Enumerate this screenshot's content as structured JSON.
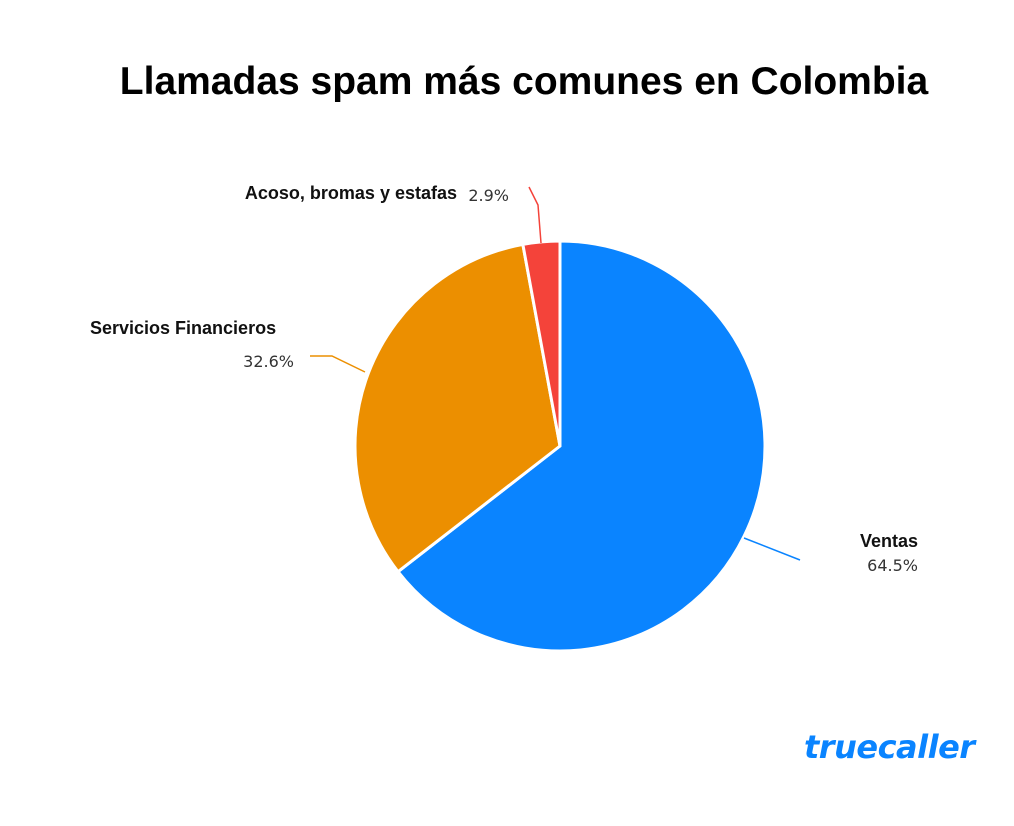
{
  "chart_data": {
    "type": "pie",
    "title": "Llamadas spam más comunes en Colombia",
    "slices": [
      {
        "label": "Ventas",
        "value": 64.5,
        "value_label": "64.5%",
        "color": "#0a84ff"
      },
      {
        "label": "Servicios Financieros",
        "value": 32.6,
        "value_label": "32.6%",
        "color": "#ec8f00"
      },
      {
        "label": "Acoso, bromas y estafas",
        "value": 2.9,
        "value_label": "2.9%",
        "color": "#f4433a"
      }
    ],
    "start": "12 o'clock",
    "direction": "clockwise",
    "legend": "none"
  },
  "brand": {
    "logo_text": "truecaller",
    "color": "#0a84ff"
  }
}
